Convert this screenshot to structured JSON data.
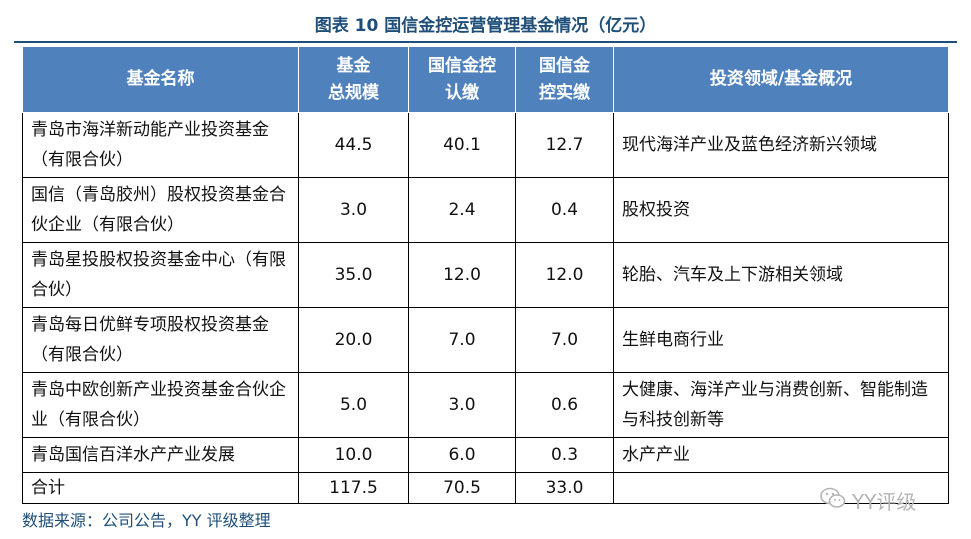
{
  "title": "图表 10 国信金控运营管理基金情况（亿元）",
  "table": {
    "headers": [
      {
        "line1": "基金名称",
        "line2": ""
      },
      {
        "line1": "基金",
        "line2": "总规模"
      },
      {
        "line1": "国信金控",
        "line2": "认缴"
      },
      {
        "line1": "国信金",
        "line2": "控实缴"
      },
      {
        "line1": "投资领域/基金概况",
        "line2": ""
      }
    ],
    "rows": [
      {
        "name": "青岛市海洋新动能产业投资基金（有限合伙）",
        "total": "44.5",
        "subscribed": "40.1",
        "paid": "12.7",
        "field": "现代海洋产业及蓝色经济新兴领域"
      },
      {
        "name": "国信（青岛胶州）股权投资基金合伙企业（有限合伙）",
        "total": "3.0",
        "subscribed": "2.4",
        "paid": "0.4",
        "field": "股权投资"
      },
      {
        "name": "青岛星投股权投资基金中心（有限合伙）",
        "total": "35.0",
        "subscribed": "12.0",
        "paid": "12.0",
        "field": "轮胎、汽车及上下游相关领域"
      },
      {
        "name": "青岛每日优鲜专项股权投资基金（有限合伙）",
        "total": "20.0",
        "subscribed": "7.0",
        "paid": "7.0",
        "field": "生鲜电商行业"
      },
      {
        "name": "青岛中欧创新产业投资基金合伙企业（有限合伙）",
        "total": "5.0",
        "subscribed": "3.0",
        "paid": "0.6",
        "field": "大健康、海洋产业与消费创新、智能制造与科技创新等"
      },
      {
        "name": "青岛国信百洋水产产业发展",
        "total": "10.0",
        "subscribed": "6.0",
        "paid": "0.3",
        "field": "水产产业"
      },
      {
        "name": "合计",
        "total": "117.5",
        "subscribed": "70.5",
        "paid": "33.0",
        "field": ""
      }
    ]
  },
  "source": "数据来源：公司公告，YY 评级整理",
  "watermark": {
    "icon": "wechat-icon",
    "text": "YY评级"
  },
  "colors": {
    "header_bg": "#4f81bd",
    "title": "#1f4e79",
    "source": "#1f4e79"
  }
}
